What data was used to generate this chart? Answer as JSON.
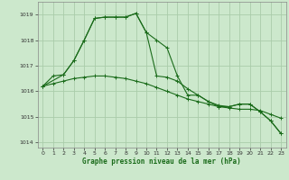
{
  "title": "Graphe pression niveau de la mer (hPa)",
  "bg_color": "#cce8cc",
  "grid_color": "#aaccaa",
  "line_color": "#1a6b1a",
  "xlim": [
    -0.5,
    23.5
  ],
  "ylim": [
    1013.8,
    1019.5
  ],
  "yticks": [
    1014,
    1015,
    1016,
    1017,
    1018,
    1019
  ],
  "xticks": [
    0,
    1,
    2,
    3,
    4,
    5,
    6,
    7,
    8,
    9,
    10,
    11,
    12,
    13,
    14,
    15,
    16,
    17,
    18,
    19,
    20,
    21,
    22,
    23
  ],
  "series1": {
    "x": [
      0,
      1,
      2,
      3,
      4,
      5,
      6,
      7,
      8,
      9,
      10,
      11,
      12,
      13,
      14,
      15,
      16,
      17,
      18,
      19,
      20,
      21,
      22,
      23
    ],
    "y": [
      1016.2,
      1016.6,
      1016.65,
      1017.2,
      1018.0,
      1018.85,
      1018.9,
      1018.9,
      1018.9,
      1019.05,
      1018.3,
      1018.0,
      1017.7,
      1016.6,
      1015.85,
      1015.85,
      1015.6,
      1015.4,
      1015.4,
      1015.5,
      1015.5,
      1015.2,
      1014.85,
      1014.35
    ]
  },
  "series2": {
    "x": [
      0,
      1,
      2,
      3,
      4,
      5,
      6,
      7,
      8,
      9,
      10,
      11,
      12,
      13,
      14,
      15,
      16,
      17,
      18,
      19,
      20,
      21,
      22,
      23
    ],
    "y": [
      1016.2,
      1016.3,
      1016.4,
      1016.5,
      1016.55,
      1016.6,
      1016.6,
      1016.55,
      1016.5,
      1016.4,
      1016.3,
      1016.15,
      1016.0,
      1015.85,
      1015.7,
      1015.6,
      1015.5,
      1015.4,
      1015.35,
      1015.3,
      1015.3,
      1015.25,
      1015.1,
      1014.95
    ]
  },
  "series3": {
    "x": [
      0,
      2,
      3,
      4,
      5,
      6,
      7,
      8,
      9,
      10,
      11,
      12,
      13,
      14,
      15,
      16,
      17,
      18,
      19,
      20,
      21,
      22,
      23
    ],
    "y": [
      1016.2,
      1016.65,
      1017.2,
      1018.0,
      1018.85,
      1018.9,
      1018.9,
      1018.9,
      1019.05,
      1018.3,
      1016.6,
      1016.55,
      1016.4,
      1016.1,
      1015.85,
      1015.6,
      1015.45,
      1015.4,
      1015.5,
      1015.5,
      1015.2,
      1014.85,
      1014.35
    ]
  }
}
